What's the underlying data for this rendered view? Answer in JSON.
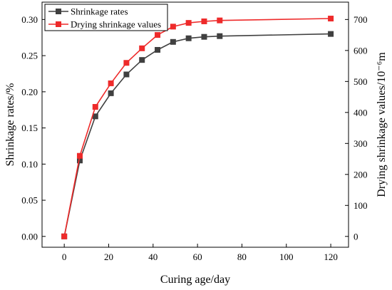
{
  "chart_data": {
    "type": "line",
    "xlabel": "Curing age/day",
    "ylabel_left": "Shrinkage rates/%",
    "ylabel_right": "Drying shrinkage values/10⁻⁶m",
    "xlim": [
      -10,
      128
    ],
    "xticks": [
      0,
      20,
      40,
      60,
      80,
      100,
      120
    ],
    "ylim_left": [
      -0.015,
      0.324
    ],
    "yticks_left": [
      "0.00",
      "0.05",
      "0.10",
      "0.15",
      "0.20",
      "0.25",
      "0.30"
    ],
    "ylim_right": [
      -35,
      756
    ],
    "yticks_right": [
      0,
      100,
      200,
      300,
      400,
      500,
      600,
      700
    ],
    "legend_position": "top-left",
    "grid": false,
    "series": [
      {
        "name": "Shrinkage rates",
        "axis": "left",
        "color": "#404040",
        "marker": "square",
        "x": [
          0,
          7,
          14,
          21,
          28,
          35,
          42,
          49,
          56,
          63,
          70,
          120
        ],
        "y": [
          0.0,
          0.105,
          0.166,
          0.198,
          0.224,
          0.244,
          0.258,
          0.269,
          0.274,
          0.276,
          0.277,
          0.28
        ]
      },
      {
        "name": "Drying shrinkage values",
        "axis": "right",
        "color": "#ee2a2a",
        "marker": "square",
        "x": [
          0,
          7,
          14,
          21,
          28,
          35,
          42,
          49,
          56,
          63,
          70,
          120
        ],
        "y": [
          0,
          260,
          418,
          494,
          560,
          607,
          650,
          677,
          689,
          694,
          697,
          703
        ]
      }
    ]
  }
}
